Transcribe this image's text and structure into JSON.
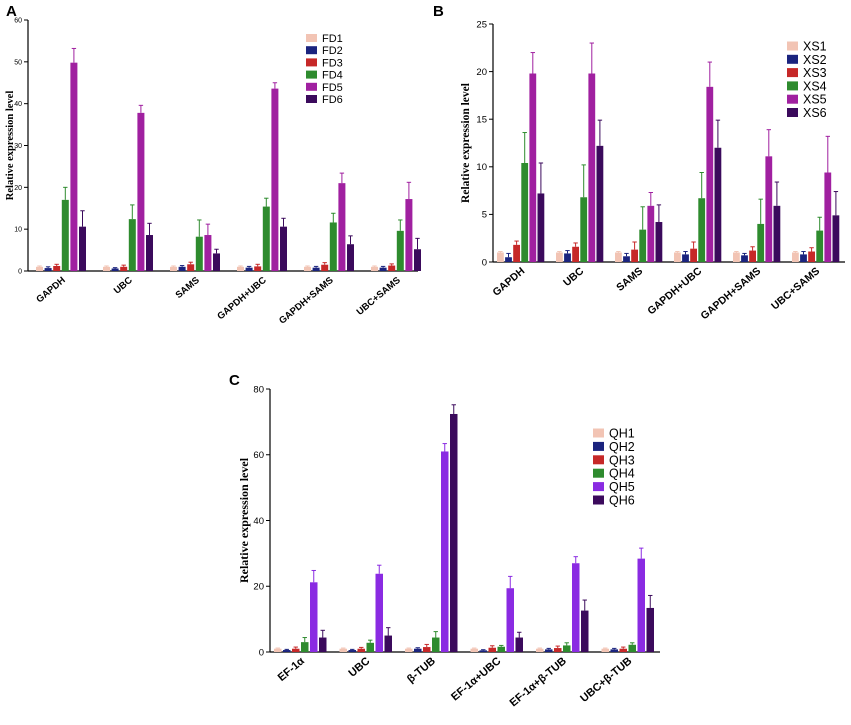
{
  "chart_data": [
    {
      "panel": "A",
      "type": "bar",
      "ylabel": "Relative expression level",
      "ylim": [
        0,
        60
      ],
      "yticks": [
        0,
        10,
        20,
        30,
        40,
        50,
        60
      ],
      "categories": [
        "GAPDH",
        "UBC",
        "SAMS",
        "GAPDH+UBC",
        "GAPDH+SAMS",
        "UBC+SAMS"
      ],
      "legend_position": "top-right",
      "series": [
        {
          "name": "FD1",
          "color": "#f2c4b4",
          "values": [
            1.0,
            1.0,
            1.0,
            1.0,
            1.0,
            1.0
          ],
          "errors": [
            0.2,
            0.2,
            0.2,
            0.2,
            0.2,
            0.2
          ]
        },
        {
          "name": "FD2",
          "color": "#1a237e",
          "values": [
            0.7,
            0.6,
            1.0,
            0.8,
            0.8,
            0.8
          ],
          "errors": [
            0.3,
            0.2,
            0.3,
            0.3,
            0.3,
            0.3
          ]
        },
        {
          "name": "FD3",
          "color": "#c62828",
          "values": [
            1.2,
            1.0,
            1.6,
            1.1,
            1.5,
            1.3
          ],
          "errors": [
            0.4,
            0.4,
            0.5,
            0.5,
            0.5,
            0.4
          ]
        },
        {
          "name": "FD4",
          "color": "#2e8b2e",
          "values": [
            17.0,
            12.4,
            8.2,
            15.4,
            11.6,
            9.6
          ],
          "errors": [
            3.0,
            3.4,
            4.0,
            2.0,
            2.2,
            2.6
          ]
        },
        {
          "name": "FD5",
          "color": "#a020a0",
          "values": [
            49.8,
            37.8,
            8.6,
            43.6,
            21.0,
            17.2
          ],
          "errors": [
            3.4,
            1.8,
            2.6,
            1.4,
            2.4,
            4.0
          ]
        },
        {
          "name": "FD6",
          "color": "#3b0a5c",
          "values": [
            10.6,
            8.6,
            4.2,
            10.6,
            6.4,
            5.2
          ],
          "errors": [
            3.8,
            2.8,
            1.0,
            2.0,
            2.0,
            2.6
          ]
        }
      ]
    },
    {
      "panel": "B",
      "type": "bar",
      "ylabel": "Relative expression level",
      "ylim": [
        0,
        25
      ],
      "yticks": [
        0,
        5,
        10,
        15,
        20,
        25
      ],
      "categories": [
        "GAPDH",
        "UBC",
        "SAMS",
        "GAPDH+UBC",
        "GAPDH+SAMS",
        "UBC+SAMS"
      ],
      "legend_position": "top-right",
      "series": [
        {
          "name": "XS1",
          "color": "#f2c4b4",
          "values": [
            1.0,
            1.0,
            1.0,
            1.0,
            1.0,
            1.0
          ],
          "errors": [
            0.1,
            0.1,
            0.1,
            0.1,
            0.1,
            0.1
          ]
        },
        {
          "name": "XS2",
          "color": "#1a237e",
          "values": [
            0.5,
            0.9,
            0.6,
            0.8,
            0.7,
            0.8
          ],
          "errors": [
            0.4,
            0.3,
            0.3,
            0.3,
            0.2,
            0.3
          ]
        },
        {
          "name": "XS3",
          "color": "#c62828",
          "values": [
            1.8,
            1.6,
            1.3,
            1.4,
            1.2,
            1.1
          ],
          "errors": [
            0.4,
            0.4,
            0.8,
            0.7,
            0.4,
            0.4
          ]
        },
        {
          "name": "XS4",
          "color": "#2e8b2e",
          "values": [
            10.4,
            6.8,
            3.4,
            6.7,
            4.0,
            3.3
          ],
          "errors": [
            3.2,
            3.4,
            2.4,
            2.7,
            2.6,
            1.4
          ]
        },
        {
          "name": "XS5",
          "color": "#a020a0",
          "values": [
            19.8,
            19.8,
            5.9,
            18.4,
            11.1,
            9.4
          ],
          "errors": [
            2.2,
            3.2,
            1.4,
            2.6,
            2.8,
            3.8
          ]
        },
        {
          "name": "XS6",
          "color": "#3b0a5c",
          "values": [
            7.2,
            12.2,
            4.2,
            12.0,
            5.9,
            4.9
          ],
          "errors": [
            3.2,
            2.7,
            1.8,
            2.9,
            2.5,
            2.5
          ]
        }
      ]
    },
    {
      "panel": "C",
      "type": "bar",
      "ylabel": "Relative expression level",
      "ylim": [
        0,
        80
      ],
      "yticks": [
        0,
        20,
        40,
        60,
        80
      ],
      "categories": [
        "EF-1α",
        "UBC",
        "β-TUB",
        "EF-1α+UBC",
        "EF-1α+β-TUB",
        "UBC+β-TUB"
      ],
      "legend_position": "top-right",
      "series": [
        {
          "name": "QH1",
          "color": "#f2c4b4",
          "values": [
            1.0,
            1.0,
            1.0,
            1.0,
            1.0,
            1.0
          ],
          "errors": [
            0.2,
            0.2,
            0.2,
            0.2,
            0.2,
            0.2
          ]
        },
        {
          "name": "QH2",
          "color": "#1a237e",
          "values": [
            0.6,
            0.6,
            1.0,
            0.5,
            0.8,
            0.8
          ],
          "errors": [
            0.2,
            0.2,
            0.3,
            0.2,
            0.3,
            0.3
          ]
        },
        {
          "name": "QH3",
          "color": "#c62828",
          "values": [
            1.0,
            1.0,
            1.5,
            1.3,
            1.2,
            1.0
          ],
          "errors": [
            0.5,
            0.4,
            0.8,
            0.6,
            0.6,
            0.5
          ]
        },
        {
          "name": "QH4",
          "color": "#2e8b2e",
          "values": [
            3.0,
            2.8,
            4.4,
            1.6,
            2.0,
            2.2
          ],
          "errors": [
            1.4,
            0.8,
            1.8,
            0.4,
            0.8,
            0.6
          ]
        },
        {
          "name": "QH5",
          "color": "#8a2be2",
          "values": [
            21.2,
            23.8,
            61.0,
            19.4,
            27.0,
            28.4
          ],
          "errors": [
            3.6,
            2.6,
            2.4,
            3.6,
            2.0,
            3.2
          ]
        },
        {
          "name": "QH6",
          "color": "#3b0a5c",
          "values": [
            4.4,
            5.0,
            72.4,
            4.4,
            12.6,
            13.4
          ],
          "errors": [
            2.2,
            2.4,
            2.8,
            1.6,
            3.2,
            3.8
          ]
        }
      ]
    }
  ]
}
